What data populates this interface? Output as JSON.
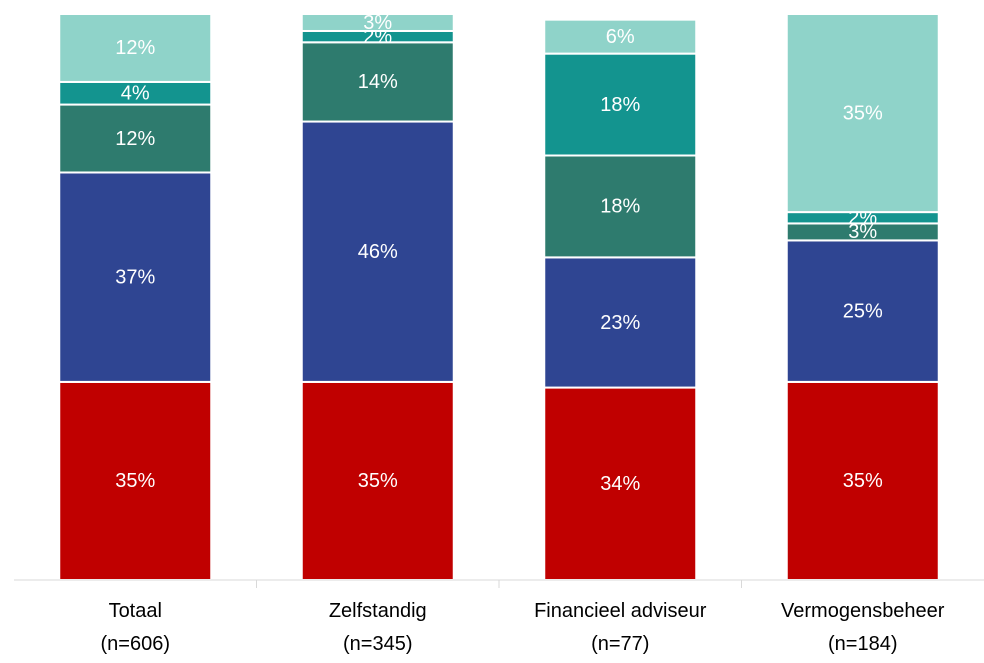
{
  "chart_data": {
    "type": "bar",
    "stacked": true,
    "categories": [
      [
        "Totaal",
        "(n=606)"
      ],
      [
        "Zelfstandig",
        "(n=345)"
      ],
      [
        "Financieel adviseur",
        "(n=77)"
      ],
      [
        "Vermogensbeheer",
        "(n=184)"
      ]
    ],
    "ylim": [
      0,
      100
    ],
    "series": [
      {
        "color": "#c00000",
        "values": [
          35,
          35,
          34,
          35
        ],
        "value_labels": [
          "35%",
          "35%",
          "34%",
          "35%"
        ]
      },
      {
        "color": "#2f4592",
        "values": [
          37,
          46,
          23,
          25
        ],
        "value_labels": [
          "37%",
          "46%",
          "23%",
          "25%"
        ]
      },
      {
        "color": "#2e7b6e",
        "values": [
          12,
          14,
          18,
          3
        ],
        "value_labels": [
          "12%",
          "14%",
          "18%",
          "3%"
        ]
      },
      {
        "color": "#13948f",
        "values": [
          4,
          2,
          18,
          2
        ],
        "value_labels": [
          "4%",
          "2%",
          "18%",
          "2%"
        ]
      },
      {
        "color": "#8fd3c9",
        "values": [
          12,
          3,
          6,
          35
        ],
        "value_labels": [
          "12%",
          "3%",
          "6%",
          "35%"
        ]
      }
    ]
  }
}
